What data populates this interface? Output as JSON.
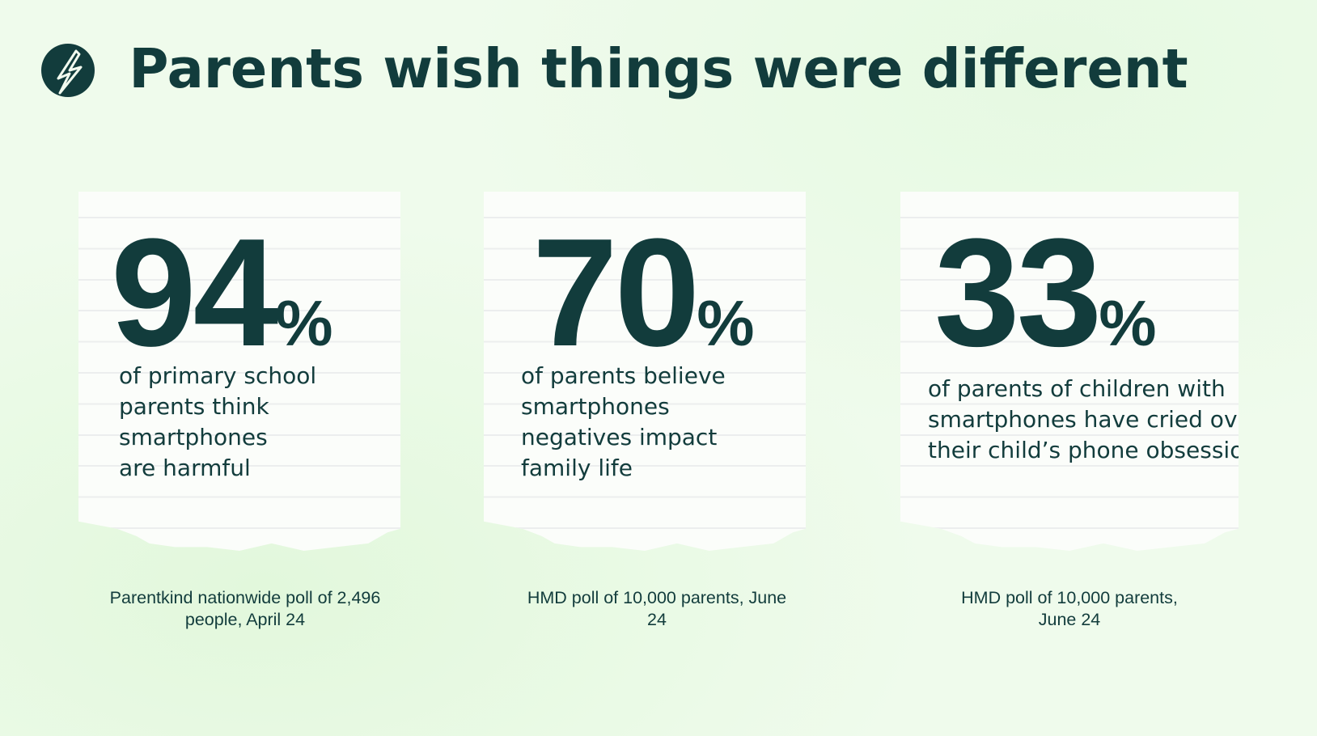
{
  "title": "Parents wish things were different",
  "logo": {
    "icon": "lightning-bolt-icon"
  },
  "colors": {
    "primary": "#123c3c",
    "background": "#effbec",
    "card": "#fbfdfa"
  },
  "stats": [
    {
      "value": "94",
      "unit": "%",
      "lines": [
        "of primary school",
        "parents think",
        "smartphones",
        "are harmful"
      ],
      "source": "Parentkind nationwide poll of 2,496 people, April 24"
    },
    {
      "value": "70",
      "unit": "%",
      "lines": [
        "of parents believe",
        "smartphones",
        "negatives impact",
        "family life"
      ],
      "source": "HMD poll of 10,000 parents, June 24"
    },
    {
      "value": "33",
      "unit": "%",
      "lines": [
        "of parents of children with",
        "smartphones have cried over",
        "their child’s phone obsession"
      ],
      "source": "HMD poll of 10,000 parents, June 24"
    }
  ]
}
